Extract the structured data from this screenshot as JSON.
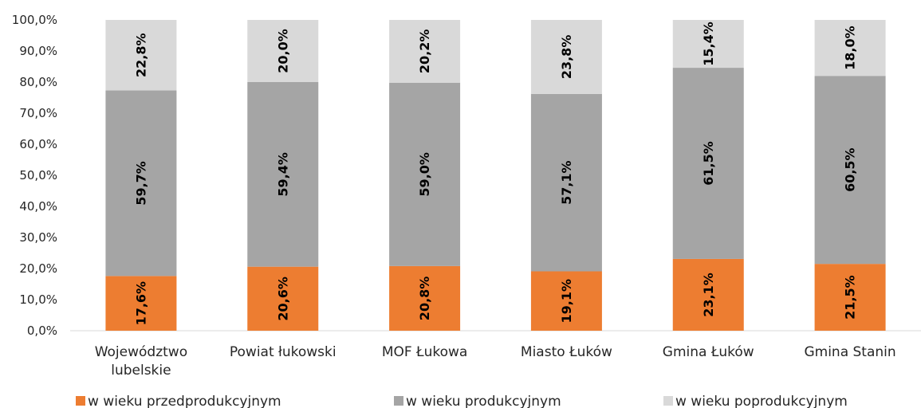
{
  "chart_data": {
    "type": "bar",
    "stacked": true,
    "percent_stacked": true,
    "categories": [
      [
        "Województwo",
        "lubelskie"
      ],
      [
        "Powiat łukowski"
      ],
      [
        "MOF Łukowa"
      ],
      [
        "Miasto Łuków"
      ],
      [
        "Gmina Łuków"
      ],
      [
        "Gmina Stanin"
      ]
    ],
    "series": [
      {
        "name": "w wieku przedprodukcyjnym",
        "color": "#ED7D31",
        "values": [
          17.6,
          20.6,
          20.8,
          19.1,
          23.1,
          21.5
        ],
        "labels": [
          "17,6%",
          "20,6%",
          "20,8%",
          "19,1%",
          "23,1%",
          "21,5%"
        ]
      },
      {
        "name": "w wieku produkcyjnym",
        "color": "#A5A5A5",
        "values": [
          59.7,
          59.4,
          59.0,
          57.1,
          61.5,
          60.5
        ],
        "labels": [
          "59,7%",
          "59,4%",
          "59,0%",
          "57,1%",
          "61,5%",
          "60,5%"
        ]
      },
      {
        "name": "w wieku poprodukcyjnym",
        "color": "#D9D9D9",
        "values": [
          22.8,
          20.0,
          20.2,
          23.8,
          15.4,
          18.0
        ],
        "labels": [
          "22,8%",
          "20,0%",
          "20,2%",
          "23,8%",
          "15,4%",
          "18,0%"
        ]
      }
    ],
    "yticks": [
      "0,0%",
      "10,0%",
      "20,0%",
      "30,0%",
      "40,0%",
      "50,0%",
      "60,0%",
      "70,0%",
      "80,0%",
      "90,0%",
      "100,0%"
    ],
    "ylim": [
      0,
      100
    ],
    "grid": false,
    "legend_position": "bottom",
    "title": "",
    "xlabel": "",
    "ylabel": ""
  }
}
